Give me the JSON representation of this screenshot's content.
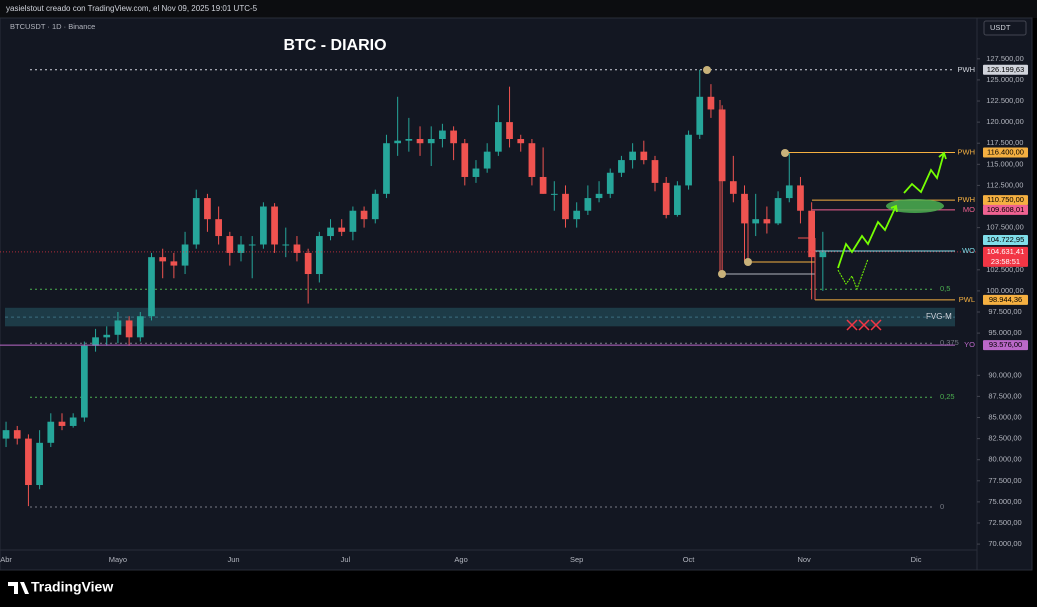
{
  "header": "yasielstout creado con TradingView.com, el Nov 09, 2025 19:01 UTC-5",
  "logo": "TradingView",
  "chart_data": {
    "type": "candlestick",
    "title": "BTC - DIARIO",
    "symbol": "BTCUSDT · 1D · Binance",
    "currency": "USDT",
    "up_color": "#26a69a",
    "down_color": "#ef5350",
    "ohlc": [
      [
        82500,
        84500,
        81500,
        83500
      ],
      [
        83500,
        84000,
        81800,
        82500
      ],
      [
        82500,
        83000,
        74500,
        77000
      ],
      [
        77000,
        83500,
        76500,
        82000
      ],
      [
        82000,
        85500,
        81500,
        84500
      ],
      [
        84500,
        85500,
        83500,
        84000
      ],
      [
        84000,
        85500,
        83800,
        85000
      ],
      [
        85000,
        94000,
        84500,
        93500
      ],
      [
        93500,
        95500,
        92800,
        94500
      ],
      [
        94500,
        95800,
        93500,
        94800
      ],
      [
        94800,
        97500,
        93800,
        96500
      ],
      [
        96500,
        97000,
        93500,
        94500
      ],
      [
        94500,
        97500,
        94000,
        97000
      ],
      [
        97000,
        104500,
        96500,
        104000
      ],
      [
        104000,
        105000,
        101500,
        103500
      ],
      [
        103500,
        104500,
        101500,
        103000
      ],
      [
        103000,
        107000,
        102000,
        105500
      ],
      [
        105500,
        112000,
        105000,
        111000
      ],
      [
        111000,
        111500,
        107000,
        108500
      ],
      [
        108500,
        110000,
        105500,
        106500
      ],
      [
        106500,
        107000,
        103000,
        104500
      ],
      [
        104500,
        106500,
        103500,
        105500
      ],
      [
        105500,
        106500,
        101500,
        105500
      ],
      [
        105500,
        110500,
        105000,
        110000
      ],
      [
        110000,
        110400,
        104500,
        105500
      ],
      [
        105500,
        107500,
        104000,
        105500
      ],
      [
        105500,
        106500,
        103500,
        104500
      ],
      [
        104500,
        105000,
        98500,
        102000
      ],
      [
        102000,
        107000,
        101000,
        106500
      ],
      [
        106500,
        108500,
        106000,
        107500
      ],
      [
        107500,
        108500,
        106500,
        107000
      ],
      [
        107000,
        110000,
        106000,
        109500
      ],
      [
        109500,
        110000,
        107500,
        108500
      ],
      [
        108500,
        112000,
        108000,
        111500
      ],
      [
        111500,
        118500,
        111000,
        117500
      ],
      [
        117500,
        123000,
        116000,
        117800
      ],
      [
        117800,
        120500,
        116500,
        118000
      ],
      [
        118000,
        119500,
        116000,
        117500
      ],
      [
        117500,
        119500,
        114800,
        118000
      ],
      [
        118000,
        119800,
        117000,
        119000
      ],
      [
        119000,
        119500,
        115500,
        117500
      ],
      [
        117500,
        118000,
        112500,
        113500
      ],
      [
        113500,
        115500,
        112800,
        114500
      ],
      [
        114500,
        117500,
        114000,
        116500
      ],
      [
        116500,
        122000,
        116000,
        120000
      ],
      [
        120000,
        124200,
        117000,
        118000
      ],
      [
        118000,
        118500,
        116500,
        117500
      ],
      [
        117500,
        118000,
        112500,
        113500
      ],
      [
        113500,
        117000,
        111500,
        111500
      ],
      [
        111500,
        113000,
        109500,
        111500
      ],
      [
        111500,
        112500,
        107500,
        108500
      ],
      [
        108500,
        110500,
        107500,
        109500
      ],
      [
        109500,
        112500,
        109000,
        111000
      ],
      [
        111000,
        113000,
        110500,
        111500
      ],
      [
        111500,
        114500,
        111000,
        114000
      ],
      [
        114000,
        116000,
        113500,
        115500
      ],
      [
        115500,
        117500,
        114500,
        116500
      ],
      [
        116500,
        117800,
        115000,
        115500
      ],
      [
        115500,
        116000,
        111800,
        112800
      ],
      [
        112800,
        113500,
        108600,
        109000
      ],
      [
        109000,
        113000,
        108800,
        112500
      ],
      [
        112500,
        119000,
        112000,
        118500
      ],
      [
        118500,
        126200,
        118000,
        123000
      ],
      [
        123000,
        124500,
        120500,
        121500
      ],
      [
        121500,
        122000,
        102000,
        113000
      ],
      [
        113000,
        116000,
        110500,
        111500
      ],
      [
        111500,
        112500,
        103500,
        108000
      ],
      [
        108000,
        111500,
        106500,
        108500
      ],
      [
        108500,
        110000,
        106800,
        108000
      ],
      [
        108000,
        111800,
        107800,
        111000
      ],
      [
        111000,
        116400,
        110500,
        112500
      ],
      [
        112500,
        113500,
        108000,
        109500
      ],
      [
        109500,
        110500,
        99000,
        104000
      ],
      [
        104000,
        107000,
        100000,
        104631.41
      ]
    ],
    "xlim": [
      -0.54,
      86.6
    ],
    "xticks": [
      {
        "value": 0,
        "label": "Abr"
      },
      {
        "value": 10,
        "label": "Mayo"
      },
      {
        "value": 20.33,
        "label": "Jun"
      },
      {
        "value": 30.33,
        "label": "Jul"
      },
      {
        "value": 40.67,
        "label": "Ago"
      },
      {
        "value": 51,
        "label": "Sep"
      },
      {
        "value": 61,
        "label": "Oct"
      },
      {
        "value": 71.33,
        "label": "Nov"
      },
      {
        "value": 81.33,
        "label": "Dic"
      }
    ],
    "ylim": [
      69300,
      132100
    ],
    "yticks": [
      {
        "value": 127500,
        "label": "127.500,00"
      },
      {
        "value": 125000,
        "label": "125.000,00"
      },
      {
        "value": 122500,
        "label": "122.500,00"
      },
      {
        "value": 120000,
        "label": "120.000,00"
      },
      {
        "value": 117500,
        "label": "117.500,00"
      },
      {
        "value": 115000,
        "label": "115.000,00"
      },
      {
        "value": 112500,
        "label": "112.500,00"
      },
      {
        "value": 107500,
        "label": "107.500,00"
      },
      {
        "value": 102500,
        "label": "102.500,00"
      },
      {
        "value": 100000,
        "label": "100.000,00"
      },
      {
        "value": 97500,
        "label": "97.500,00"
      },
      {
        "value": 95000,
        "label": "95.000,00"
      },
      {
        "value": 90000,
        "label": "90.000,00"
      },
      {
        "value": 87500,
        "label": "87.500,00"
      },
      {
        "value": 85000,
        "label": "85.000,00"
      },
      {
        "value": 82500,
        "label": "82.500,00"
      },
      {
        "value": 80000,
        "label": "80.000,00"
      },
      {
        "value": 77500,
        "label": "77.500,00"
      },
      {
        "value": 75000,
        "label": "75.000,00"
      },
      {
        "value": 72500,
        "label": "72.500,00"
      },
      {
        "value": 70000,
        "label": "70.000,00"
      }
    ],
    "levels": [
      {
        "name": "PWH",
        "price": {
          "value": 126199.63,
          "label": "126.199,63"
        },
        "color": "#d1d4dc",
        "text_color": "#000000"
      },
      {
        "name": "PWH",
        "price": {
          "value": 116400,
          "label": "116.400,00"
        },
        "color": "#f5b041",
        "text_color": "#000000"
      },
      {
        "name": "PWH",
        "price": {
          "value": 110750,
          "label": "110.750,00"
        },
        "color": "#f5b041",
        "text_color": "#000000"
      },
      {
        "name": "MO",
        "price": {
          "value": 109608.01,
          "label": "109.608,01"
        },
        "color": "#f06292",
        "text_color": "#000000"
      },
      {
        "name": "WO",
        "price": {
          "value": 104722.95,
          "label": "104.722,95"
        },
        "color": "#80deea",
        "text_color": "#000000"
      },
      {
        "name": "PWL",
        "price": {
          "value": 98944.36,
          "label": "98.944,36"
        },
        "color": "#f5b041",
        "text_color": "#000000"
      },
      {
        "name": "YO",
        "price": {
          "value": 93576.0,
          "label": "93.576,00"
        },
        "color": "#ba68c8",
        "text_color": "#000000"
      }
    ],
    "current_price": {
      "value": 104631.41,
      "label": "104.631,41",
      "countdown": "23:58:51",
      "color": "#f23645",
      "text_color": "#ffffff"
    },
    "fib_levels": [
      {
        "ratio": {
          "value": 0.5,
          "label": "0,5"
        },
        "price": 100200,
        "color": "#4caf50"
      },
      {
        "ratio": {
          "value": 0.375,
          "label": "0,375"
        },
        "price": 93800,
        "color": "#787b86"
      },
      {
        "ratio": {
          "value": 0.25,
          "label": "0,25"
        },
        "price": 87400,
        "color": "#4caf50"
      },
      {
        "ratio": 0,
        "price": 74400,
        "color": "#787b86"
      }
    ],
    "fvg": {
      "label": "FVG-M",
      "top": 98000,
      "bottom": 95800,
      "color": "#1d3b47"
    }
  }
}
